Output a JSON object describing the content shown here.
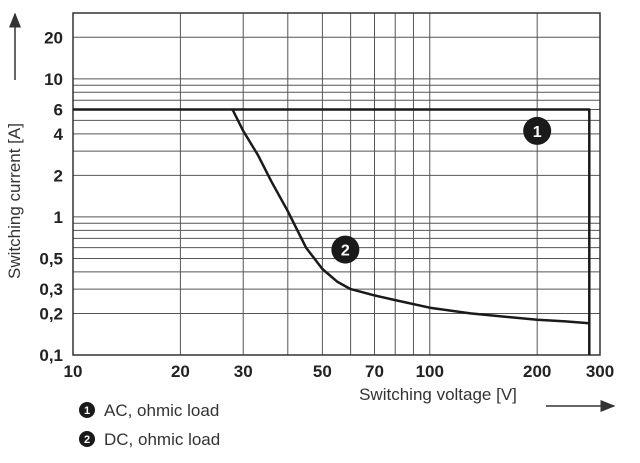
{
  "chart_data": {
    "type": "line",
    "xlabel": "Switching voltage [V]",
    "ylabel": "Switching current [A]",
    "xscale": "log",
    "yscale": "log",
    "xlim": [
      10,
      300
    ],
    "ylim": [
      0.1,
      30
    ],
    "x_ticks": [
      10,
      20,
      30,
      50,
      70,
      100,
      200,
      300
    ],
    "x_tick_labels": [
      "10",
      "20",
      "30",
      "50",
      "70",
      "100",
      "200",
      "300"
    ],
    "y_ticks": [
      0.1,
      0.2,
      0.3,
      0.5,
      1,
      2,
      4,
      6,
      10,
      20
    ],
    "y_tick_labels": [
      "0,1",
      "0,2",
      "0,3",
      "0,5",
      "1",
      "2",
      "4",
      "6",
      "10",
      "20"
    ],
    "x_grid": [
      10,
      20,
      30,
      40,
      50,
      60,
      70,
      80,
      90,
      100,
      200,
      300
    ],
    "y_grid": [
      0.1,
      0.2,
      0.3,
      0.4,
      0.5,
      0.6,
      0.7,
      0.8,
      0.9,
      1,
      2,
      3,
      4,
      5,
      6,
      7,
      8,
      9,
      10,
      20,
      30
    ],
    "grid": true,
    "series": [
      {
        "marker": "1",
        "color": "#1a1a1a",
        "x": [
          10,
          280,
          280
        ],
        "y": [
          6,
          6,
          0.1
        ]
      },
      {
        "marker": "2",
        "color": "#1a1a1a",
        "x": [
          28,
          30,
          33,
          36,
          40,
          45,
          50,
          55,
          60,
          70,
          80,
          100,
          130,
          160,
          200,
          240,
          280
        ],
        "y": [
          6,
          4.2,
          2.8,
          1.8,
          1.1,
          0.6,
          0.42,
          0.34,
          0.3,
          0.27,
          0.25,
          0.22,
          0.2,
          0.19,
          0.18,
          0.175,
          0.17
        ]
      }
    ],
    "markers": [
      {
        "label": "1",
        "x": 200,
        "y": 4.2
      },
      {
        "label": "2",
        "x": 58,
        "y": 0.58
      }
    ],
    "legend": [
      {
        "marker": "1",
        "text": "AC, ohmic load"
      },
      {
        "marker": "2",
        "text": "DC, ohmic load"
      }
    ]
  }
}
